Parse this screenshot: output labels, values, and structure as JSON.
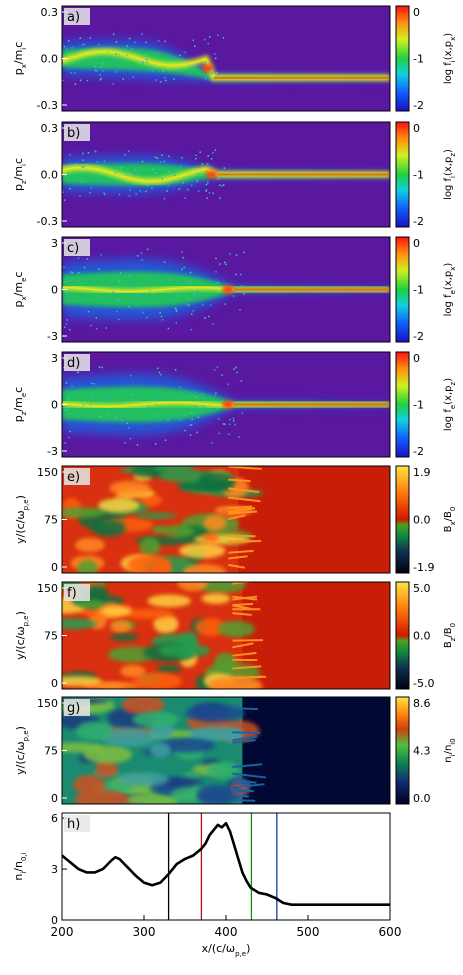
{
  "figure": {
    "colors": {
      "background": "#5a18a0",
      "line": "#000000"
    }
  },
  "chart_data": [
    {
      "panel": "a)",
      "type": "heatmap",
      "ylabel": "p_x/m_ic",
      "ylabel_main": "p",
      "ylabel_sub": "x",
      "ylabel_tail": "/m",
      "ylabel_sub2": "i",
      "ylabel_end": "c",
      "yticks": [
        "0.3",
        "0.0",
        "-0.3"
      ],
      "ylim": [
        -0.3,
        0.3
      ],
      "colorbar": {
        "label_main": "log f",
        "label_sub": "i",
        "label_end": "(x,p",
        "label_sub2": "x",
        "label_close": ")",
        "ticks": [
          "0",
          "-1",
          "-2"
        ],
        "scale": "rainbow",
        "range": [
          -2,
          0
        ]
      },
      "shock_x": 385,
      "upstream_value": -0.11
    },
    {
      "panel": "b)",
      "type": "heatmap",
      "ylabel_main": "p",
      "ylabel_sub": "z",
      "ylabel_tail": "/m",
      "ylabel_sub2": "i",
      "ylabel_end": "c",
      "yticks": [
        "0.3",
        "0.0",
        "-0.3"
      ],
      "ylim": [
        -0.3,
        0.3
      ],
      "colorbar": {
        "label_main": "log f",
        "label_sub": "i",
        "label_end": "(x,p",
        "label_sub2": "z",
        "label_close": ")",
        "ticks": [
          "0",
          "-1",
          "-2"
        ],
        "scale": "rainbow",
        "range": [
          -2,
          0
        ]
      },
      "shock_x": 390,
      "upstream_value": 0.0
    },
    {
      "panel": "c)",
      "type": "heatmap",
      "ylabel_main": "p",
      "ylabel_sub": "x",
      "ylabel_tail": "/m",
      "ylabel_sub2": "e",
      "ylabel_end": "c",
      "yticks": [
        "3",
        "0",
        "-3"
      ],
      "ylim": [
        -3,
        3
      ],
      "colorbar": {
        "label_main": "log f",
        "label_sub": "e",
        "label_end": "(x,p",
        "label_sub2": "x",
        "label_close": ")",
        "ticks": [
          "0",
          "-1",
          "-2"
        ],
        "scale": "rainbow",
        "range": [
          -2,
          0
        ]
      },
      "shock_x": 410,
      "upstream_value": 0.0
    },
    {
      "panel": "d)",
      "type": "heatmap",
      "ylabel_main": "p",
      "ylabel_sub": "z",
      "ylabel_tail": "/m",
      "ylabel_sub2": "e",
      "ylabel_end": "c",
      "yticks": [
        "3",
        "0",
        "-3"
      ],
      "ylim": [
        -3,
        3
      ],
      "colorbar": {
        "label_main": "log f",
        "label_sub": "e",
        "label_end": "(x,p",
        "label_sub2": "z",
        "label_close": ")",
        "ticks": [
          "0",
          "-1",
          "-2"
        ],
        "scale": "rainbow",
        "range": [
          -2,
          0
        ]
      },
      "shock_x": 410,
      "upstream_value": 0.0
    },
    {
      "panel": "e)",
      "type": "heatmap",
      "ylabel_main": "y/(c/ω",
      "ylabel_sub": "p,e",
      "ylabel_tail": ")",
      "yticks": [
        "150",
        "75",
        "0"
      ],
      "ylim": [
        0,
        150
      ],
      "colorbar": {
        "label_main": "B",
        "label_sub": "x",
        "label_end": "/B",
        "label_sub2": "0",
        "label_close": "",
        "ticks": [
          "1.9",
          "0.0",
          "-1.9"
        ],
        "scale": "bfield",
        "range": [
          -1.9,
          1.9
        ]
      },
      "shock_x": 415
    },
    {
      "panel": "f)",
      "type": "heatmap",
      "ylabel_main": "y/(c/ω",
      "ylabel_sub": "p,e",
      "ylabel_tail": ")",
      "yticks": [
        "150",
        "75",
        "0"
      ],
      "ylim": [
        0,
        150
      ],
      "colorbar": {
        "label_main": "B",
        "label_sub": "z",
        "label_end": "/B",
        "label_sub2": "0",
        "label_close": "",
        "ticks": [
          "5.0",
          "0.0",
          "-5.0"
        ],
        "scale": "bfield",
        "range": [
          -5.0,
          5.0
        ]
      },
      "shock_x": 420
    },
    {
      "panel": "g)",
      "type": "heatmap",
      "ylabel_main": "y/(c/ω",
      "ylabel_sub": "p,e",
      "ylabel_tail": ")",
      "yticks": [
        "150",
        "75",
        "0"
      ],
      "ylim": [
        0,
        150
      ],
      "colorbar": {
        "label_main": "n",
        "label_sub": "i",
        "label_end": "/n",
        "label_sub2": "i0",
        "label_close": "",
        "ticks": [
          "8.6",
          "4.3",
          "0.0"
        ],
        "scale": "density",
        "range": [
          0.0,
          8.6
        ]
      },
      "shock_x": 420
    },
    {
      "panel": "h)",
      "type": "line",
      "ylabel_main": "n",
      "ylabel_sub": "i",
      "ylabel_tail": "/n",
      "ylabel_sub2": "0,i",
      "ylabel_end": "",
      "yticks": [
        "6",
        "3",
        "0"
      ],
      "ylim": [
        0,
        6.3
      ],
      "xlabel_main": "x/(c/ω",
      "xlabel_sub": "p,e",
      "xlabel_tail": ")",
      "xticks": [
        "200",
        "300",
        "400",
        "500",
        "600"
      ],
      "xlim": [
        200,
        600
      ],
      "vlines": [
        {
          "x": 330,
          "color": "#000000"
        },
        {
          "x": 370,
          "color": "#b01010"
        },
        {
          "x": 431,
          "color": "#109010"
        },
        {
          "x": 462,
          "color": "#1040a0"
        }
      ],
      "series": [
        {
          "x": [
            200,
            210,
            220,
            230,
            240,
            250,
            260,
            265,
            270,
            280,
            290,
            300,
            310,
            320,
            330,
            340,
            350,
            360,
            370,
            375,
            380,
            385,
            390,
            395,
            400,
            405,
            410,
            415,
            420,
            425,
            430,
            440,
            450,
            460,
            470,
            480,
            500,
            520,
            540,
            560,
            580,
            600
          ],
          "y": [
            3.8,
            3.4,
            3.0,
            2.8,
            2.8,
            3.0,
            3.5,
            3.7,
            3.6,
            3.1,
            2.6,
            2.2,
            2.05,
            2.2,
            2.7,
            3.3,
            3.6,
            3.8,
            4.2,
            4.5,
            5.0,
            5.3,
            5.6,
            5.45,
            5.7,
            5.2,
            4.4,
            3.6,
            2.8,
            2.3,
            1.9,
            1.6,
            1.5,
            1.3,
            1.0,
            0.9,
            0.9,
            0.9,
            0.9,
            0.9,
            0.9,
            0.9
          ]
        }
      ]
    }
  ]
}
